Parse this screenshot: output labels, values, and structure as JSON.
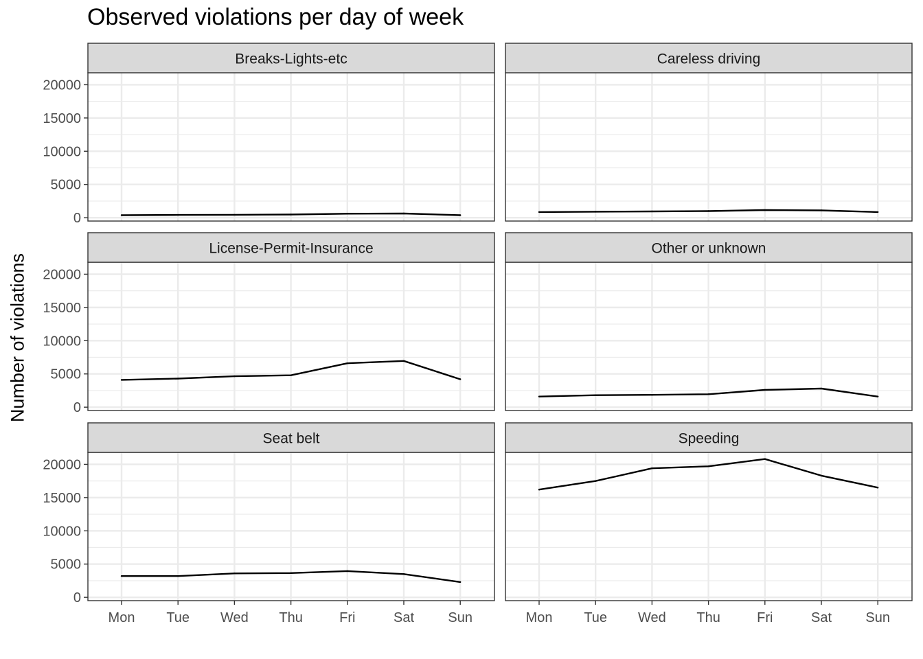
{
  "chart_data": {
    "type": "line",
    "title": "Observed violations per day of week",
    "xlabel": "",
    "ylabel": "Number of violations",
    "x": [
      "Mon",
      "Tue",
      "Wed",
      "Thu",
      "Fri",
      "Sat",
      "Sun"
    ],
    "yticks": [
      0,
      5000,
      10000,
      15000,
      20000
    ],
    "ylim": [
      -500,
      21800
    ],
    "grid": true,
    "facets": [
      {
        "label": "Breaks-Lights-etc",
        "values": [
          380,
          420,
          440,
          480,
          600,
          640,
          380
        ]
      },
      {
        "label": "Careless driving",
        "values": [
          850,
          900,
          950,
          1000,
          1150,
          1100,
          850
        ]
      },
      {
        "label": "License-Permit-Insurance",
        "values": [
          4100,
          4300,
          4650,
          4800,
          6600,
          6950,
          4200
        ]
      },
      {
        "label": "Other or unknown",
        "values": [
          1600,
          1800,
          1850,
          1950,
          2600,
          2800,
          1600
        ]
      },
      {
        "label": "Seat belt",
        "values": [
          3200,
          3200,
          3600,
          3650,
          3950,
          3500,
          2300
        ]
      },
      {
        "label": "Speeding",
        "values": [
          16200,
          17500,
          19400,
          19700,
          20800,
          18300,
          16500
        ]
      }
    ],
    "colors": {
      "line": "#000000",
      "strip_fill": "#D9D9D9",
      "panel_border": "#333333",
      "grid": "#EBEBEB",
      "axis_text": "#4D4D4D"
    }
  }
}
